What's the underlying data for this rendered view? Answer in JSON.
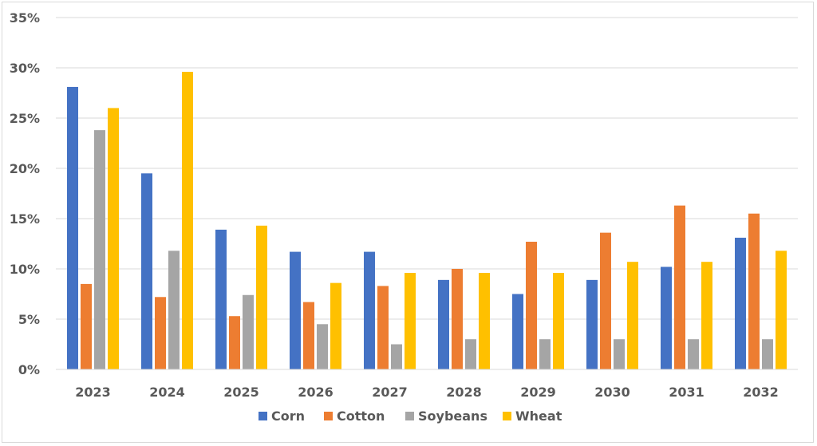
{
  "chart_data": {
    "type": "bar",
    "categories": [
      "2023",
      "2024",
      "2025",
      "2026",
      "2027",
      "2028",
      "2029",
      "2030",
      "2031",
      "2032"
    ],
    "series": [
      {
        "name": "Corn",
        "color": "#4472c4",
        "values": [
          28.1,
          19.5,
          13.9,
          11.7,
          11.7,
          8.9,
          7.5,
          8.9,
          10.2,
          13.1
        ]
      },
      {
        "name": "Cotton",
        "color": "#ed7d31",
        "values": [
          8.5,
          7.2,
          5.3,
          6.7,
          8.3,
          10.0,
          12.7,
          13.6,
          16.3,
          15.5
        ]
      },
      {
        "name": "Soybeans",
        "color": "#a5a5a5",
        "values": [
          23.8,
          11.8,
          7.4,
          4.5,
          2.5,
          3.0,
          3.0,
          3.0,
          3.0,
          3.0
        ]
      },
      {
        "name": "Wheat",
        "color": "#ffc000",
        "values": [
          26.0,
          29.6,
          14.3,
          8.6,
          9.6,
          9.6,
          9.6,
          10.7,
          10.7,
          11.8
        ]
      }
    ],
    "y_ticks": [
      "0%",
      "5%",
      "10%",
      "15%",
      "20%",
      "25%",
      "30%",
      "35%"
    ],
    "ylim": [
      0,
      35
    ],
    "title": "",
    "xlabel": "",
    "ylabel": "",
    "grid": true,
    "legend_position": "bottom"
  }
}
